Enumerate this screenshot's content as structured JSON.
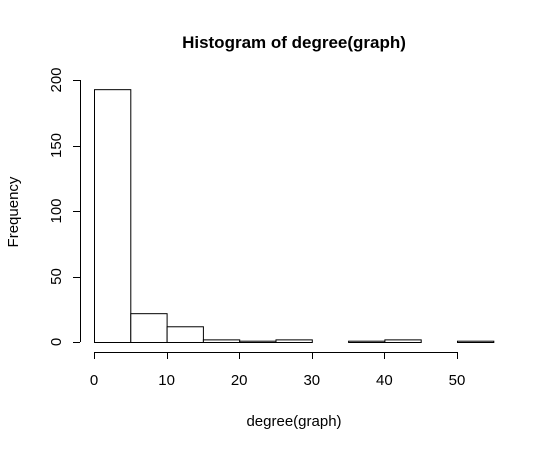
{
  "chart_data": {
    "type": "bar",
    "title": "Histogram of degree(graph)",
    "xlabel": "degree(graph)",
    "ylabel": "Frequency",
    "bins": [
      {
        "start": 0,
        "end": 5,
        "count": 193
      },
      {
        "start": 5,
        "end": 10,
        "count": 22
      },
      {
        "start": 10,
        "end": 15,
        "count": 12
      },
      {
        "start": 15,
        "end": 20,
        "count": 2
      },
      {
        "start": 20,
        "end": 25,
        "count": 1
      },
      {
        "start": 25,
        "end": 30,
        "count": 2
      },
      {
        "start": 30,
        "end": 35,
        "count": 0
      },
      {
        "start": 35,
        "end": 40,
        "count": 1
      },
      {
        "start": 40,
        "end": 45,
        "count": 2
      },
      {
        "start": 45,
        "end": 50,
        "count": 0
      },
      {
        "start": 50,
        "end": 55,
        "count": 1
      }
    ],
    "xlim": [
      0,
      55
    ],
    "ylim": [
      0,
      200
    ],
    "xticks": [
      0,
      10,
      20,
      30,
      40,
      50
    ],
    "yticks": [
      0,
      50,
      100,
      150,
      200
    ],
    "grid": false,
    "colors": {
      "bar_fill": "#ffffff",
      "bar_stroke": "#000000"
    }
  }
}
